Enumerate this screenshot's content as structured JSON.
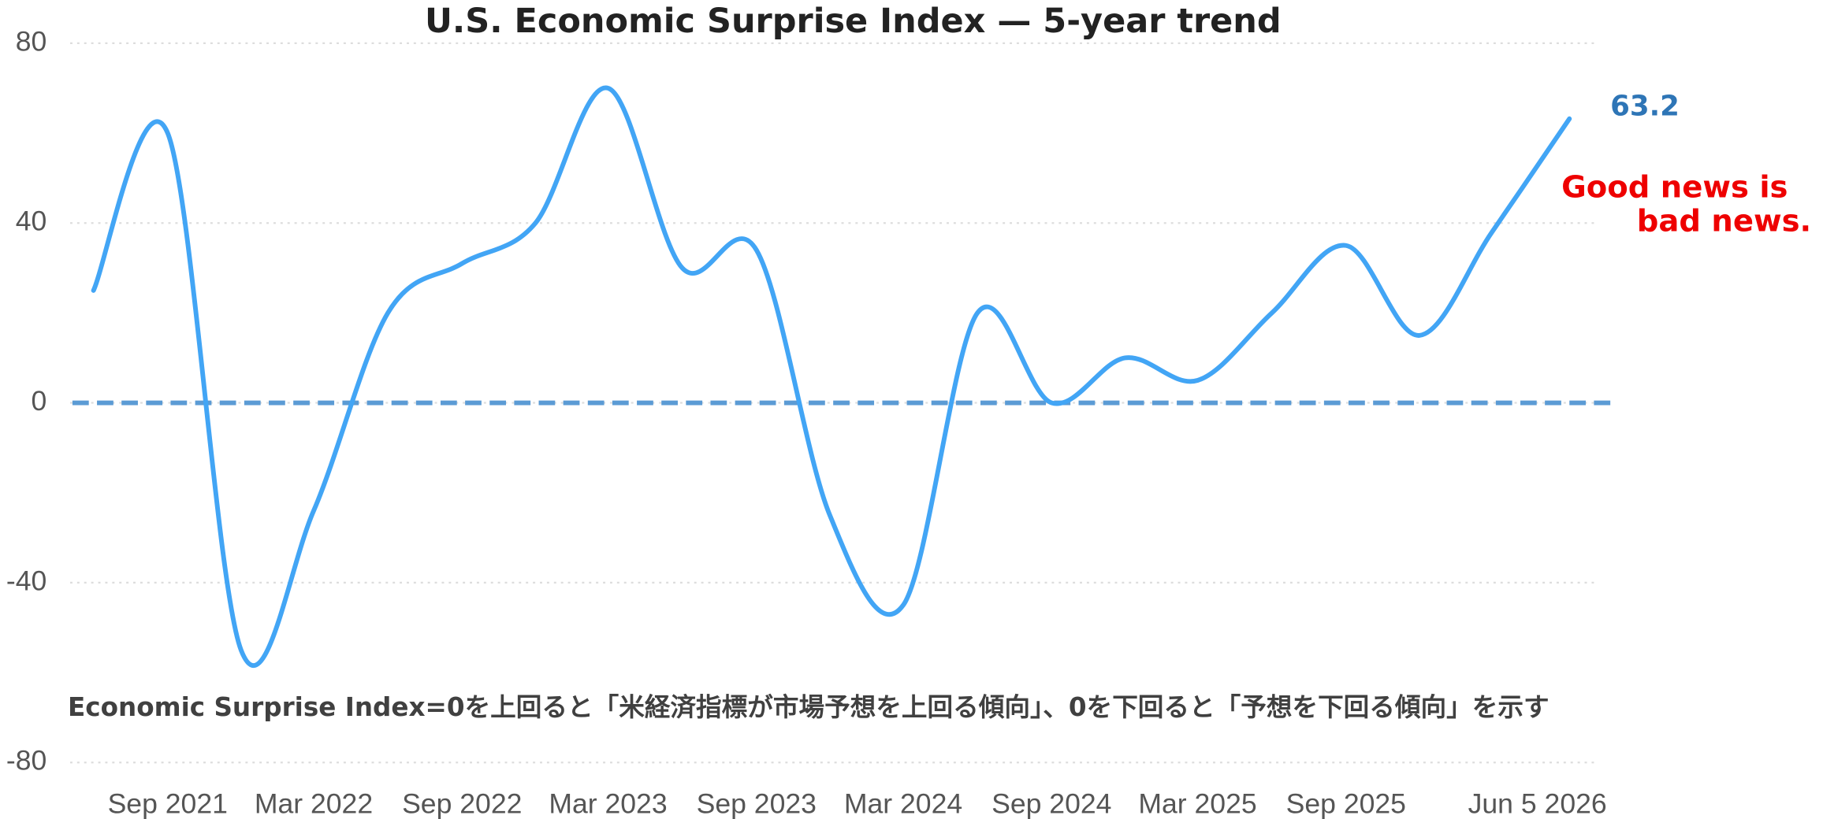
{
  "chart_data": {
    "type": "line",
    "title": "U.S. Economic Surprise Index — 5-year trend",
    "x": [
      "2021-06-01",
      "2021-09-01",
      "2021-12-01",
      "2022-03-01",
      "2022-06-01",
      "2022-09-01",
      "2022-12-01",
      "2023-03-01",
      "2023-06-01",
      "2023-09-01",
      "2023-12-01",
      "2024-03-01",
      "2024-06-01",
      "2024-09-01",
      "2024-12-01",
      "2025-03-01",
      "2025-06-01",
      "2025-09-01",
      "2025-12-01",
      "2026-03-01",
      "2026-06-05"
    ],
    "values": [
      25,
      60,
      -55,
      -24,
      20,
      31,
      40,
      70,
      30,
      34,
      -25,
      -45,
      20,
      0,
      10,
      5,
      20,
      35,
      15,
      38,
      63.2
    ],
    "color": "#42a5f5",
    "xlim": [
      "2021-06-01",
      "2026-06-05"
    ],
    "xticks": [
      {
        "value": "2021-09-01",
        "label": "Sep 2021"
      },
      {
        "value": "2022-03-01",
        "label": "Mar 2022"
      },
      {
        "value": "2022-09-01",
        "label": "Sep 2022"
      },
      {
        "value": "2023-03-01",
        "label": "Mar 2023"
      },
      {
        "value": "2023-09-01",
        "label": "Sep 2023"
      },
      {
        "value": "2024-03-01",
        "label": "Mar 2024"
      },
      {
        "value": "2024-09-01",
        "label": "Sep 2024"
      },
      {
        "value": "2025-03-01",
        "label": "Mar 2025"
      },
      {
        "value": "2025-09-01",
        "label": "Sep 2025"
      },
      {
        "value": "2026-06-05",
        "label": "Jun 5 2026"
      }
    ],
    "ylim": [
      -80,
      80
    ],
    "yticks": [
      -80,
      -40,
      0,
      40,
      80
    ],
    "grid": true,
    "reference_line": {
      "value": 0,
      "color": "#5b9bd5"
    },
    "annotation": {
      "lines": [
        "Good news is",
        "bad news."
      ],
      "color": "#ee0000"
    },
    "note": "Economic Surprise Index=0を上回ると「米経済指標が市場予想を上回る傾向」、0を下回ると「予想を下回る傾向」を示す"
  }
}
